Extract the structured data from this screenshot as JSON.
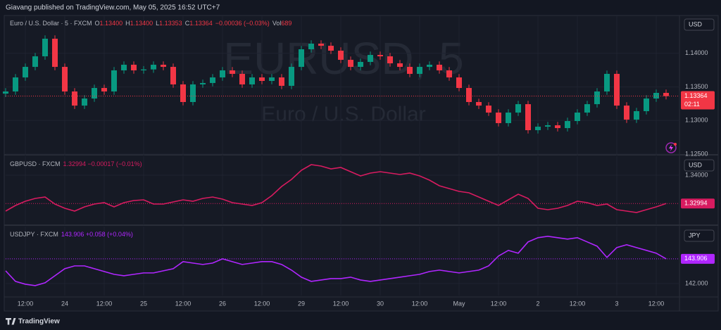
{
  "header": {
    "text": "Giavang published on TradingView.com, May 05, 2025 16:52 UTC+7"
  },
  "footer": {
    "brand": "TradingView"
  },
  "chart_data": [
    {
      "type": "candlestick",
      "title": "Euro / U.S. Dollar · 5 · FXCM",
      "ohlc": [
        {
          "key": "O",
          "text": "1.13400"
        },
        {
          "key": "H",
          "text": "1.13400"
        },
        {
          "key": "L",
          "text": "1.13353"
        },
        {
          "key": "C",
          "text": "1.13364"
        }
      ],
      "change": "−0.00036 (−0.03%)",
      "volume": {
        "key": "Vol",
        "text": "689"
      },
      "watermark": {
        "symbol": "EURUSD, 5",
        "description": "Euro / U.S. Dollar"
      },
      "currency": "USD",
      "last_label": "1.13364",
      "countdown": "02:11",
      "up_color": "#089981",
      "down_color": "#f23645",
      "categories": [
        null,
        null,
        "12:00",
        null,
        null,
        null,
        "24",
        null,
        null,
        null,
        "12:00",
        null,
        null,
        null,
        "25",
        null,
        null,
        null,
        "12:00",
        null,
        null,
        null,
        "26",
        null,
        null,
        null,
        "12:00",
        null,
        null,
        null,
        "29",
        null,
        null,
        null,
        "12:00",
        null,
        null,
        null,
        "30",
        null,
        null,
        null,
        "12:00",
        null,
        null,
        null,
        "May",
        null,
        null,
        null,
        "12:00",
        null,
        null,
        null,
        "2",
        null,
        null,
        null,
        "12:00",
        null,
        null,
        null,
        "3",
        null,
        null,
        null,
        "12:00",
        null
      ],
      "open": [
        1.134,
        1.13432,
        1.13641,
        1.13798,
        1.13955,
        1.14217,
        1.13798,
        1.13432,
        1.13222,
        1.13327,
        1.13484,
        1.13432,
        1.13746,
        1.1383,
        1.13746,
        1.1376,
        1.1383,
        1.13798,
        1.13537,
        1.13275,
        1.13537,
        1.13558,
        1.13641,
        1.13746,
        1.13694,
        1.13537,
        1.13641,
        1.13589,
        1.13641,
        1.13516,
        1.13798,
        1.1406,
        1.14144,
        1.14112,
        1.14039,
        1.13903,
        1.13798,
        1.13872,
        1.13976,
        1.13955,
        1.13851,
        1.13798,
        1.13694,
        1.13798,
        1.1383,
        1.13746,
        1.13641,
        1.13484,
        1.13275,
        1.13222,
        1.13118,
        1.12961,
        1.13118,
        1.13243,
        1.12856,
        1.12908,
        1.12929,
        1.12887,
        1.12992,
        1.13118,
        1.13243,
        1.13432,
        1.13694,
        1.13222,
        1.13013,
        1.13139,
        1.13327,
        1.13411
      ],
      "high": [
        1.13482,
        1.13691,
        1.13848,
        1.14005,
        1.14267,
        1.14267,
        1.13848,
        1.13482,
        1.13377,
        1.13534,
        1.13534,
        1.13796,
        1.1388,
        1.1388,
        1.1381,
        1.1388,
        1.1388,
        1.13848,
        1.13587,
        1.13587,
        1.13608,
        1.13691,
        1.13796,
        1.13796,
        1.13744,
        1.13691,
        1.13691,
        1.13691,
        1.13691,
        1.13848,
        1.1411,
        1.14194,
        1.14194,
        1.14162,
        1.14089,
        1.13953,
        1.13922,
        1.14026,
        1.14026,
        1.14005,
        1.13901,
        1.13848,
        1.13848,
        1.1388,
        1.1388,
        1.13796,
        1.13691,
        1.13534,
        1.13325,
        1.13272,
        1.13168,
        1.13168,
        1.13293,
        1.13293,
        1.12958,
        1.12979,
        1.12979,
        1.13042,
        1.13168,
        1.13293,
        1.13482,
        1.13744,
        1.13744,
        1.13272,
        1.13189,
        1.13377,
        1.13461,
        1.13461
      ],
      "low": [
        1.1335,
        1.13382,
        1.13591,
        1.13748,
        1.13905,
        1.13748,
        1.13382,
        1.13172,
        1.13172,
        1.13277,
        1.13382,
        1.13382,
        1.13696,
        1.13696,
        1.13696,
        1.1371,
        1.13748,
        1.13487,
        1.13225,
        1.13225,
        1.13487,
        1.13508,
        1.13591,
        1.13644,
        1.13487,
        1.13487,
        1.13539,
        1.13539,
        1.13466,
        1.13466,
        1.13748,
        1.1401,
        1.14062,
        1.13989,
        1.13853,
        1.13748,
        1.13748,
        1.13822,
        1.13905,
        1.13801,
        1.13748,
        1.13644,
        1.13644,
        1.13748,
        1.13696,
        1.13591,
        1.13434,
        1.13225,
        1.13172,
        1.13068,
        1.12911,
        1.12911,
        1.13068,
        1.12806,
        1.12806,
        1.12858,
        1.12837,
        1.12837,
        1.12942,
        1.13068,
        1.13193,
        1.13382,
        1.13172,
        1.12963,
        1.12963,
        1.13089,
        1.13277,
        1.13314
      ],
      "close": [
        1.13432,
        1.13641,
        1.13798,
        1.13955,
        1.14217,
        1.13798,
        1.13432,
        1.13222,
        1.13327,
        1.13484,
        1.13432,
        1.13746,
        1.1383,
        1.13746,
        1.1376,
        1.1383,
        1.13798,
        1.13537,
        1.13275,
        1.13537,
        1.13558,
        1.13641,
        1.13746,
        1.13694,
        1.13537,
        1.13641,
        1.13589,
        1.13641,
        1.13516,
        1.13798,
        1.1406,
        1.14144,
        1.14112,
        1.14039,
        1.13903,
        1.13798,
        1.13872,
        1.13976,
        1.13955,
        1.13851,
        1.13798,
        1.13694,
        1.13798,
        1.1383,
        1.13746,
        1.13641,
        1.13484,
        1.13275,
        1.13222,
        1.13118,
        1.12961,
        1.13118,
        1.13243,
        1.12856,
        1.12908,
        1.12929,
        1.12887,
        1.12992,
        1.13118,
        1.13243,
        1.13432,
        1.13694,
        1.13222,
        1.13013,
        1.13139,
        1.13327,
        1.13411,
        1.13364
      ],
      "ylim": [
        1.125,
        1.145
      ],
      "yticks": [
        {
          "value": 1.14,
          "label": "1.14000"
        },
        {
          "value": 1.135,
          "label": "1.13500"
        },
        {
          "value": 1.13,
          "label": "1.13000"
        },
        {
          "value": 1.125,
          "label": "1.12500"
        }
      ]
    },
    {
      "type": "line",
      "title": "GBPUSD · FXCM",
      "legend_text": "1.32994 −0.00017 (−0.01%)",
      "currency": "USD",
      "last_label": "1.32994",
      "color": "#d81b60",
      "values": [
        1.32725,
        1.32925,
        1.33075,
        1.33175,
        1.33225,
        1.32975,
        1.32825,
        1.32725,
        1.32875,
        1.32975,
        1.33025,
        1.32875,
        1.33025,
        1.331,
        1.33125,
        1.32975,
        1.32975,
        1.3305,
        1.33125,
        1.33075,
        1.33175,
        1.33225,
        1.3315,
        1.33025,
        1.32975,
        1.32925,
        1.33025,
        1.33275,
        1.336,
        1.3385,
        1.34175,
        1.34375,
        1.34325,
        1.34225,
        1.34275,
        1.34125,
        1.33975,
        1.34075,
        1.34125,
        1.34075,
        1.34025,
        1.34075,
        1.33975,
        1.33825,
        1.33625,
        1.33525,
        1.33425,
        1.33375,
        1.33225,
        1.33075,
        1.32925,
        1.33125,
        1.33325,
        1.33175,
        1.32825,
        1.32775,
        1.32825,
        1.32925,
        1.33075,
        1.33025,
        1.32925,
        1.32975,
        1.32775,
        1.32725,
        1.32675,
        1.32775,
        1.32875,
        1.32994
      ],
      "ylim": [
        1.32275,
        1.34575
      ],
      "yticks": [
        {
          "value": 1.34,
          "label": "1.34000"
        }
      ]
    },
    {
      "type": "line",
      "title": "USDJPY · FXCM",
      "legend_text": "143.906 +0.058 (+0.04%)",
      "currency": "JPY",
      "last_label": "143.906",
      "color": "#b026ff",
      "values": [
        142.98,
        142.163,
        141.946,
        141.837,
        142.054,
        142.599,
        143.143,
        143.361,
        143.361,
        143.143,
        142.925,
        142.708,
        142.599,
        142.708,
        142.817,
        142.817,
        142.98,
        143.143,
        143.688,
        143.579,
        143.47,
        143.579,
        143.905,
        143.688,
        143.47,
        143.579,
        143.688,
        143.688,
        143.47,
        143.034,
        142.49,
        142.163,
        142.272,
        142.381,
        142.381,
        142.49,
        142.272,
        142.163,
        142.272,
        142.381,
        142.49,
        142.599,
        142.708,
        142.925,
        143.034,
        142.925,
        142.817,
        142.925,
        143.034,
        143.361,
        144.123,
        144.559,
        144.341,
        145.212,
        145.539,
        145.647,
        145.539,
        145.43,
        145.539,
        145.212,
        144.885,
        144.014,
        144.776,
        144.994,
        144.776,
        144.559,
        144.341,
        143.906
      ],
      "ylim": [
        141.18,
        146.18
      ],
      "yticks": [
        {
          "value": 142,
          "label": "142.000"
        }
      ]
    }
  ]
}
